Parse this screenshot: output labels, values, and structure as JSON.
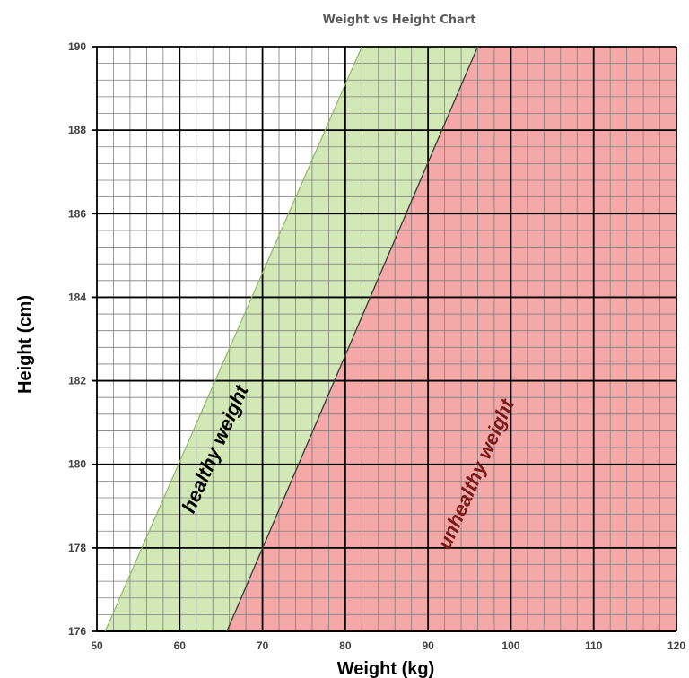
{
  "chart_data": {
    "type": "area",
    "title": "Weight vs Height Chart",
    "xlabel": "Weight (kg)",
    "ylabel": "Height (cm)",
    "xlim": [
      50,
      120
    ],
    "ylim": [
      176,
      190
    ],
    "x_ticks": [
      "50",
      "60",
      "70",
      "80",
      "90",
      "100",
      "110",
      "120"
    ],
    "y_ticks": [
      "176",
      "178",
      "180",
      "182",
      "184",
      "186",
      "188",
      "190"
    ],
    "grid": true,
    "minor_grid": {
      "x_step": 2,
      "y_step": 0.4
    },
    "regions": [
      {
        "name": "healthy weight",
        "color": "#d2e9b7",
        "edge_color": "#90b866",
        "text_color": "#000000",
        "polygon": [
          [
            51,
            176
          ],
          [
            65.7,
            176
          ],
          [
            96,
            190
          ],
          [
            82,
            190
          ]
        ]
      },
      {
        "name": "unhealthy weight",
        "color": "#f4a9a8",
        "edge_color": "#404040",
        "text_color": "#7a1a1a",
        "polygon": [
          [
            65.7,
            176
          ],
          [
            120,
            176
          ],
          [
            120,
            190
          ],
          [
            96,
            190
          ]
        ]
      }
    ]
  }
}
